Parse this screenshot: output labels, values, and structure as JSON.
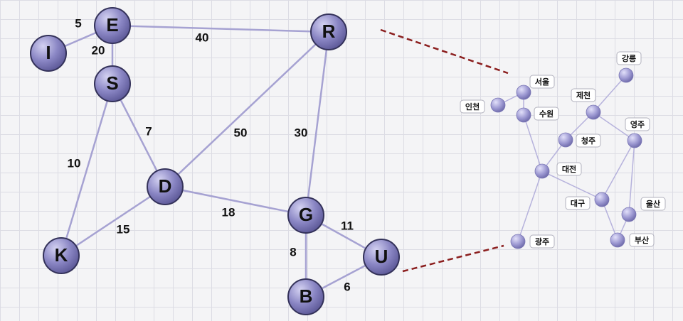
{
  "graph": {
    "nodes": [
      {
        "id": "E",
        "label": "E"
      },
      {
        "id": "I",
        "label": "I"
      },
      {
        "id": "S",
        "label": "S"
      },
      {
        "id": "R",
        "label": "R"
      },
      {
        "id": "D",
        "label": "D"
      },
      {
        "id": "K",
        "label": "K"
      },
      {
        "id": "G",
        "label": "G"
      },
      {
        "id": "U",
        "label": "U"
      },
      {
        "id": "B",
        "label": "B"
      }
    ],
    "edges": [
      {
        "from": "E",
        "to": "I",
        "weight": "5"
      },
      {
        "from": "E",
        "to": "S",
        "weight": "20"
      },
      {
        "from": "E",
        "to": "R",
        "weight": "40"
      },
      {
        "from": "S",
        "to": "D",
        "weight": "7"
      },
      {
        "from": "S",
        "to": "K",
        "weight": "10"
      },
      {
        "from": "R",
        "to": "D",
        "weight": "50"
      },
      {
        "from": "R",
        "to": "G",
        "weight": "30"
      },
      {
        "from": "D",
        "to": "K",
        "weight": "15"
      },
      {
        "from": "D",
        "to": "G",
        "weight": "18"
      },
      {
        "from": "G",
        "to": "U",
        "weight": "11"
      },
      {
        "from": "G",
        "to": "B",
        "weight": "8"
      },
      {
        "from": "U",
        "to": "B",
        "weight": "6"
      }
    ]
  },
  "map": {
    "cities": [
      {
        "id": "seoul",
        "label": "서울"
      },
      {
        "id": "incheon",
        "label": "인천"
      },
      {
        "id": "suwon",
        "label": "수원"
      },
      {
        "id": "gangneung",
        "label": "강릉"
      },
      {
        "id": "jecheon",
        "label": "제천"
      },
      {
        "id": "cheongju",
        "label": "청주"
      },
      {
        "id": "yeongju",
        "label": "영주"
      },
      {
        "id": "daejeon",
        "label": "대전"
      },
      {
        "id": "daegu",
        "label": "대구"
      },
      {
        "id": "ulsan",
        "label": "울산"
      },
      {
        "id": "gwangju",
        "label": "광주"
      },
      {
        "id": "busan",
        "label": "부산"
      }
    ],
    "links": [
      [
        "incheon",
        "seoul"
      ],
      [
        "seoul",
        "suwon"
      ],
      [
        "suwon",
        "daejeon"
      ],
      [
        "cheongju",
        "daejeon"
      ],
      [
        "cheongju",
        "jecheon"
      ],
      [
        "jecheon",
        "gangneung"
      ],
      [
        "jecheon",
        "yeongju"
      ],
      [
        "yeongju",
        "daegu"
      ],
      [
        "yeongju",
        "ulsan"
      ],
      [
        "ulsan",
        "busan"
      ],
      [
        "daejeon",
        "daegu"
      ],
      [
        "daegu",
        "busan"
      ],
      [
        "daejeon",
        "gwangju"
      ]
    ]
  },
  "colors": {
    "node_fill": "#8a86c4",
    "node_stroke": "#34325a",
    "edge": "#a6a2d2",
    "connector": "#8b1e1e"
  }
}
